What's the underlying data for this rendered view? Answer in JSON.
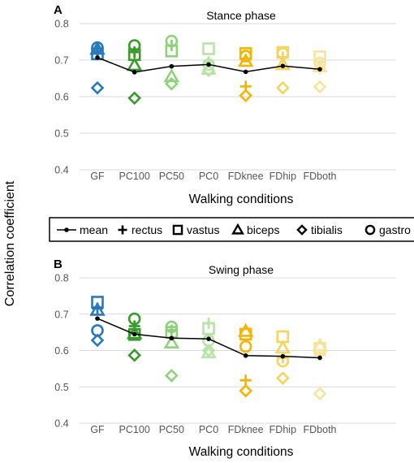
{
  "figure": {
    "shared_ylabel": "Correlation coefficient"
  },
  "legend": {
    "entries": [
      {
        "label": "mean",
        "marker": "dot-line"
      },
      {
        "label": "rectus",
        "marker": "plus"
      },
      {
        "label": "vastus",
        "marker": "square"
      },
      {
        "label": "biceps",
        "marker": "triangle"
      },
      {
        "label": "tibialis",
        "marker": "diamond"
      },
      {
        "label": "gastro",
        "marker": "circle"
      }
    ]
  },
  "colors": {
    "GF": "#2878bd",
    "PC100": "#3a9a2c",
    "PC50": "#8fd07a",
    "PC0": "#b9e3a6",
    "FDknee": "#f4b400",
    "FDhip": "#f5d35c",
    "FDboth": "#f7e49a",
    "mean": "#000000"
  },
  "chart_data": [
    {
      "panel_label": "A",
      "type": "scatter",
      "title": "Stance phase",
      "xlabel": "Walking conditions",
      "ylabel": "Correlation coefficient",
      "categories": [
        "GF",
        "PC100",
        "PC50",
        "PC0",
        "FDknee",
        "FDhip",
        "FDboth"
      ],
      "ylim": [
        0.4,
        0.8
      ],
      "yticks": [
        "0.4",
        "0.5",
        "0.6",
        "0.7",
        "0.8"
      ],
      "grid": true,
      "series": [
        {
          "name": "mean",
          "values": [
            0.707,
            0.667,
            0.683,
            0.688,
            0.668,
            0.684,
            0.675
          ]
        },
        {
          "name": "rectus",
          "values": [
            0.725,
            0.722,
            0.74,
            0.695,
            0.628,
            0.708,
            0.677
          ]
        },
        {
          "name": "vastus",
          "values": [
            0.717,
            0.715,
            0.725,
            0.731,
            0.718,
            0.721,
            0.709
          ]
        },
        {
          "name": "biceps",
          "values": [
            0.73,
            0.686,
            0.655,
            0.675,
            0.697,
            0.688,
            0.682
          ]
        },
        {
          "name": "tibialis",
          "values": [
            0.624,
            0.596,
            0.635,
            0.672,
            0.603,
            0.624,
            0.627
          ]
        },
        {
          "name": "gastro",
          "values": [
            0.734,
            0.74,
            0.752,
            0.688,
            0.711,
            0.718,
            0.692
          ]
        }
      ]
    },
    {
      "panel_label": "B",
      "type": "scatter",
      "title": "Swing phase",
      "xlabel": "Walking conditions",
      "ylabel": "Correlation coefficient",
      "categories": [
        "GF",
        "PC100",
        "PC50",
        "PC0",
        "FDknee",
        "FDhip",
        "FDboth"
      ],
      "ylim": [
        0.4,
        0.8
      ],
      "yticks": [
        "0.4",
        "0.5",
        "0.6",
        "0.7",
        "0.8"
      ],
      "grid": true,
      "series": [
        {
          "name": "mean",
          "values": [
            0.688,
            0.645,
            0.634,
            0.632,
            0.586,
            0.584,
            0.58
          ]
        },
        {
          "name": "rectus",
          "values": [
            0.716,
            0.667,
            0.656,
            0.675,
            0.518,
            0.58,
            0.587
          ]
        },
        {
          "name": "vastus",
          "values": [
            0.733,
            0.644,
            0.65,
            0.66,
            0.645,
            0.638,
            0.606
          ]
        },
        {
          "name": "biceps",
          "values": [
            0.711,
            0.647,
            0.621,
            0.594,
            0.653,
            0.607,
            0.613
          ]
        },
        {
          "name": "tibialis",
          "values": [
            0.628,
            0.587,
            0.531,
            0.6,
            0.489,
            0.524,
            0.481
          ]
        },
        {
          "name": "gastro",
          "values": [
            0.655,
            0.687,
            0.665,
            0.627,
            0.611,
            0.571,
            0.605
          ]
        }
      ]
    }
  ]
}
